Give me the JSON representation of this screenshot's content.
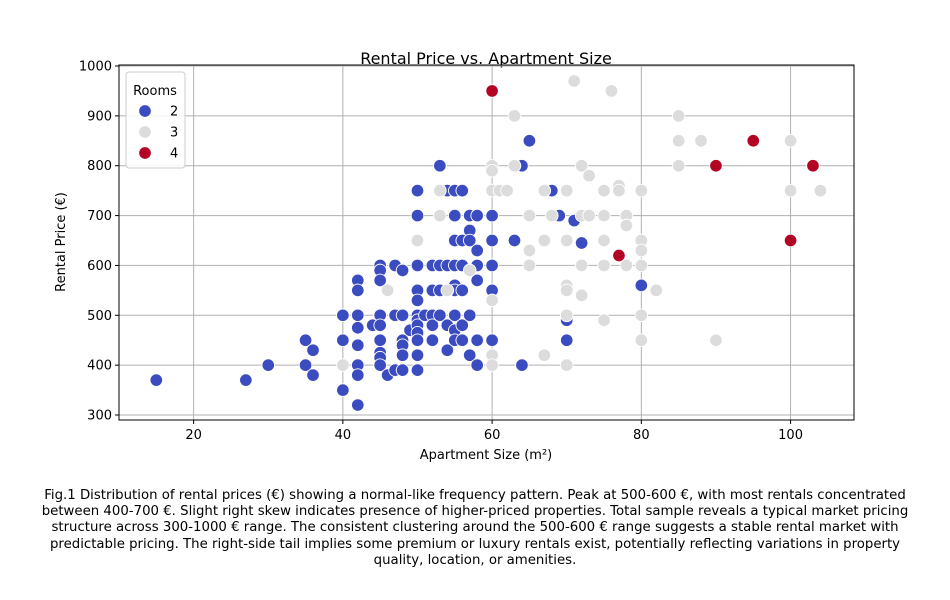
{
  "chart_data": {
    "type": "scatter",
    "title": "Rental Price vs. Apartment Size",
    "xlabel": "Apartment Size (m²)",
    "ylabel": "Rental Price (€)",
    "xlim": [
      10,
      108.5
    ],
    "ylim": [
      290,
      1002
    ],
    "xticks": [
      "20",
      "40",
      "60",
      "80",
      "100"
    ],
    "yticks": [
      "300",
      "400",
      "500",
      "600",
      "700",
      "800",
      "900",
      "1000"
    ],
    "grid": true,
    "legend": {
      "title": "Rooms",
      "placement": "top-left"
    },
    "colors": {
      "2": "#3b4cc0",
      "3": "#dddcdc",
      "4": "#b40426"
    },
    "series": [
      {
        "name": "2",
        "points": [
          [
            15,
            370
          ],
          [
            27,
            370
          ],
          [
            30,
            400
          ],
          [
            35,
            450
          ],
          [
            35,
            400
          ],
          [
            36,
            430
          ],
          [
            36,
            380
          ],
          [
            40,
            500
          ],
          [
            40,
            450
          ],
          [
            40,
            350
          ],
          [
            42,
            570
          ],
          [
            42,
            550
          ],
          [
            42,
            500
          ],
          [
            42,
            475
          ],
          [
            42,
            440
          ],
          [
            42,
            400
          ],
          [
            42,
            380
          ],
          [
            42,
            320
          ],
          [
            44,
            480
          ],
          [
            45,
            600
          ],
          [
            45,
            590
          ],
          [
            45,
            570
          ],
          [
            45,
            500
          ],
          [
            45,
            480
          ],
          [
            45,
            450
          ],
          [
            45,
            425
          ],
          [
            45,
            415
          ],
          [
            45,
            400
          ],
          [
            46,
            380
          ],
          [
            47,
            600
          ],
          [
            47,
            500
          ],
          [
            47,
            390
          ],
          [
            48,
            590
          ],
          [
            48,
            500
          ],
          [
            48,
            450
          ],
          [
            48,
            440
          ],
          [
            48,
            420
          ],
          [
            48,
            390
          ],
          [
            49,
            470
          ],
          [
            50,
            750
          ],
          [
            50,
            700
          ],
          [
            50,
            600
          ],
          [
            50,
            550
          ],
          [
            50,
            530
          ],
          [
            50,
            500
          ],
          [
            50,
            490
          ],
          [
            50,
            480
          ],
          [
            50,
            465
          ],
          [
            50,
            450
          ],
          [
            50,
            420
          ],
          [
            50,
            390
          ],
          [
            51,
            500
          ],
          [
            52,
            600
          ],
          [
            52,
            550
          ],
          [
            52,
            500
          ],
          [
            52,
            480
          ],
          [
            52,
            450
          ],
          [
            53,
            800
          ],
          [
            53,
            600
          ],
          [
            53,
            550
          ],
          [
            53,
            500
          ],
          [
            54,
            750
          ],
          [
            54,
            600
          ],
          [
            54,
            480
          ],
          [
            54,
            430
          ],
          [
            55,
            750
          ],
          [
            55,
            700
          ],
          [
            55,
            650
          ],
          [
            55,
            600
          ],
          [
            55,
            560
          ],
          [
            55,
            550
          ],
          [
            55,
            500
          ],
          [
            55,
            470
          ],
          [
            55,
            450
          ],
          [
            56,
            750
          ],
          [
            56,
            650
          ],
          [
            56,
            600
          ],
          [
            56,
            550
          ],
          [
            56,
            480
          ],
          [
            56,
            450
          ],
          [
            57,
            700
          ],
          [
            57,
            670
          ],
          [
            57,
            650
          ],
          [
            57,
            500
          ],
          [
            57,
            420
          ],
          [
            58,
            700
          ],
          [
            58,
            630
          ],
          [
            58,
            600
          ],
          [
            58,
            570
          ],
          [
            58,
            450
          ],
          [
            58,
            400
          ],
          [
            60,
            700
          ],
          [
            60,
            650
          ],
          [
            60,
            600
          ],
          [
            60,
            550
          ],
          [
            60,
            450
          ],
          [
            63,
            650
          ],
          [
            64,
            800
          ],
          [
            64,
            400
          ],
          [
            65,
            850
          ],
          [
            68,
            750
          ],
          [
            69,
            700
          ],
          [
            70,
            490
          ],
          [
            70,
            450
          ],
          [
            71,
            690
          ],
          [
            72,
            645
          ],
          [
            80,
            560
          ]
        ]
      },
      {
        "name": "3",
        "points": [
          [
            40,
            400
          ],
          [
            46,
            550
          ],
          [
            50,
            650
          ],
          [
            53,
            750
          ],
          [
            53,
            700
          ],
          [
            54,
            550
          ],
          [
            57,
            590
          ],
          [
            60,
            800
          ],
          [
            60,
            790
          ],
          [
            60,
            750
          ],
          [
            60,
            530
          ],
          [
            60,
            420
          ],
          [
            60,
            400
          ],
          [
            61,
            750
          ],
          [
            62,
            750
          ],
          [
            63,
            900
          ],
          [
            63,
            800
          ],
          [
            65,
            700
          ],
          [
            65,
            630
          ],
          [
            65,
            600
          ],
          [
            67,
            750
          ],
          [
            67,
            650
          ],
          [
            67,
            420
          ],
          [
            68,
            700
          ],
          [
            70,
            750
          ],
          [
            70,
            650
          ],
          [
            70,
            560
          ],
          [
            70,
            550
          ],
          [
            70,
            500
          ],
          [
            70,
            400
          ],
          [
            71,
            970
          ],
          [
            72,
            800
          ],
          [
            72,
            700
          ],
          [
            72,
            600
          ],
          [
            72,
            540
          ],
          [
            73,
            780
          ],
          [
            73,
            700
          ],
          [
            75,
            750
          ],
          [
            75,
            700
          ],
          [
            75,
            650
          ],
          [
            75,
            600
          ],
          [
            75,
            490
          ],
          [
            76,
            950
          ],
          [
            77,
            760
          ],
          [
            77,
            750
          ],
          [
            78,
            700
          ],
          [
            78,
            680
          ],
          [
            78,
            600
          ],
          [
            80,
            750
          ],
          [
            80,
            650
          ],
          [
            80,
            630
          ],
          [
            80,
            600
          ],
          [
            80,
            500
          ],
          [
            80,
            450
          ],
          [
            82,
            550
          ],
          [
            85,
            900
          ],
          [
            85,
            850
          ],
          [
            85,
            800
          ],
          [
            88,
            850
          ],
          [
            90,
            450
          ],
          [
            100,
            850
          ],
          [
            100,
            750
          ],
          [
            104,
            750
          ]
        ]
      },
      {
        "name": "4",
        "points": [
          [
            60,
            950
          ],
          [
            77,
            620
          ],
          [
            90,
            800
          ],
          [
            95,
            850
          ],
          [
            100,
            650
          ],
          [
            103,
            800
          ]
        ]
      }
    ]
  },
  "caption": "Fig.1 Distribution of rental prices (€) showing a normal-like frequency pattern. Peak at 500-600 €, with most rentals concentrated between 400-700 €. Slight right skew indicates presence of higher-priced properties. Total sample reveals a typical market pricing structure across 300-1000 € range. The consistent clustering around the 500-600 € range suggests a stable rental market with predictable pricing. The right-side tail implies some premium or luxury rentals exist, potentially reflecting variations in property quality, location, or amenities."
}
